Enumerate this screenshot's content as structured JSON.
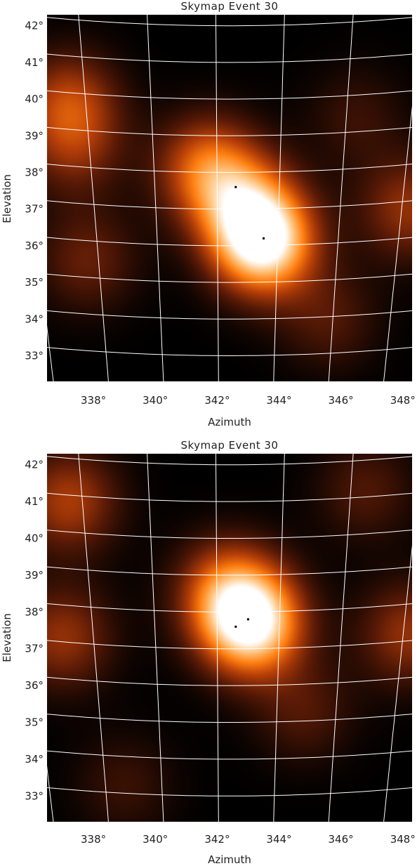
{
  "chart_data": [
    {
      "type": "heatmap",
      "title": "Skymap Event 30",
      "xlabel": "Azimuth",
      "ylabel": "Elevation",
      "xlim": [
        336.5,
        348.3
      ],
      "ylim": [
        32.3,
        42.3
      ],
      "x_ticks": [
        "338°",
        "340°",
        "342°",
        "344°",
        "346°",
        "348°"
      ],
      "y_ticks": [
        "33°",
        "34°",
        "35°",
        "36°",
        "37°",
        "38°",
        "39°",
        "40°",
        "41°",
        "42°"
      ],
      "grid": true,
      "colormap": [
        "#000000",
        "#5a1a06",
        "#b84008",
        "#ff7e10",
        "#ffc27a",
        "#ffffff"
      ],
      "grid_color": "#ffffff",
      "peaks": [
        {
          "az": 343.5,
          "el": 36.1,
          "amp": 1.0
        },
        {
          "az": 341.7,
          "el": 38.1,
          "amp": 0.55
        },
        {
          "az": 342.9,
          "el": 37.1,
          "amp": 0.45
        },
        {
          "az": 337.2,
          "el": 39.9,
          "amp": 0.4
        },
        {
          "az": 337.4,
          "el": 38.6,
          "amp": 0.25
        },
        {
          "az": 337.8,
          "el": 35.6,
          "amp": 0.25
        },
        {
          "az": 348.2,
          "el": 37.0,
          "amp": 0.35
        },
        {
          "az": 345.6,
          "el": 34.0,
          "amp": 0.2
        },
        {
          "az": 346.5,
          "el": 39.5,
          "amp": 0.15
        }
      ],
      "markers": [
        {
          "az": 342.6,
          "el": 37.6
        },
        {
          "az": 343.5,
          "el": 36.2
        }
      ]
    },
    {
      "type": "heatmap",
      "title": "Skymap Event 30",
      "xlabel": "Azimuth",
      "ylabel": "Elevation",
      "xlim": [
        336.5,
        348.3
      ],
      "ylim": [
        32.3,
        42.3
      ],
      "x_ticks": [
        "338°",
        "340°",
        "342°",
        "344°",
        "346°",
        "348°"
      ],
      "y_ticks": [
        "33°",
        "34°",
        "35°",
        "36°",
        "37°",
        "38°",
        "39°",
        "40°",
        "41°",
        "42°"
      ],
      "grid": true,
      "colormap": [
        "#000000",
        "#5a1a06",
        "#b84008",
        "#ff7e10",
        "#ffc27a",
        "#ffffff"
      ],
      "grid_color": "#ffffff",
      "peaks": [
        {
          "az": 343.1,
          "el": 37.7,
          "amp": 1.0
        },
        {
          "az": 342.3,
          "el": 38.6,
          "amp": 0.45
        },
        {
          "az": 337.2,
          "el": 41.0,
          "amp": 0.4
        },
        {
          "az": 337.0,
          "el": 37.3,
          "amp": 0.35
        },
        {
          "az": 348.2,
          "el": 37.4,
          "amp": 0.35
        },
        {
          "az": 344.8,
          "el": 35.3,
          "amp": 0.2
        },
        {
          "az": 346.8,
          "el": 41.3,
          "amp": 0.2
        },
        {
          "az": 339.0,
          "el": 33.3,
          "amp": 0.15
        }
      ],
      "markers": [
        {
          "az": 342.6,
          "el": 37.6
        },
        {
          "az": 343.0,
          "el": 37.8
        }
      ]
    }
  ]
}
